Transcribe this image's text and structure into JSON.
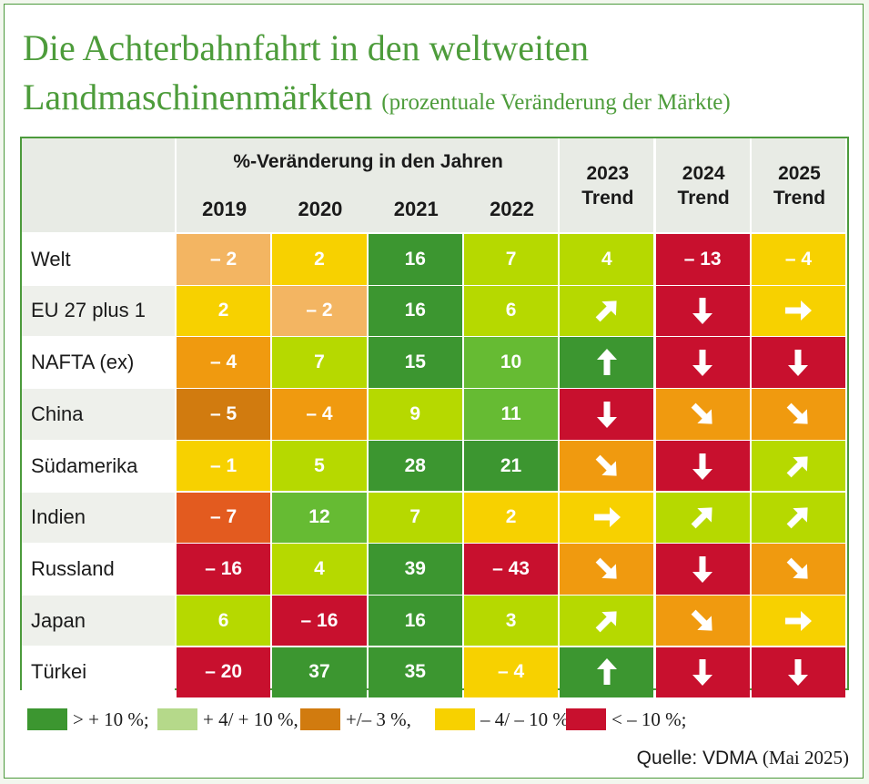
{
  "title": {
    "line1": "Die Achterbahnfahrt in den weltweiten",
    "line2": "Landmaschinenmärkten",
    "subtitle": "(prozentuale Veränderung der Märkte)"
  },
  "colors": {
    "dark_green": "#3c9630",
    "mid_green": "#66bb33",
    "light_green": "#b6d900",
    "light_orange": "#f3b562",
    "orange": "#f09a0f",
    "brown_orange": "#d17b0f",
    "red_orange": "#e35b1f",
    "yellow": "#f7d100",
    "red": "#c8102e",
    "legend_light_green": "#b5d98a"
  },
  "chart_data": {
    "type": "table",
    "header_group": "%-Veränderung in den Jahren",
    "year_columns": [
      "2019",
      "2020",
      "2021",
      "2022"
    ],
    "trend_columns": [
      {
        "year": "2023",
        "label": "Trend"
      },
      {
        "year": "2024",
        "label": "Trend"
      },
      {
        "year": "2025",
        "label": "Trend"
      }
    ],
    "rows": [
      {
        "region": "Welt",
        "values": [
          {
            "text": "– 2",
            "color": "light_orange"
          },
          {
            "text": "2",
            "color": "yellow"
          },
          {
            "text": "16",
            "color": "dark_green"
          },
          {
            "text": "7",
            "color": "light_green"
          }
        ],
        "trends": [
          {
            "text": "4",
            "color": "light_green"
          },
          {
            "text": "– 13",
            "color": "red"
          },
          {
            "text": "– 4",
            "color": "yellow"
          }
        ]
      },
      {
        "region": "EU 27 plus 1",
        "values": [
          {
            "text": "2",
            "color": "yellow"
          },
          {
            "text": "– 2",
            "color": "light_orange"
          },
          {
            "text": "16",
            "color": "dark_green"
          },
          {
            "text": "6",
            "color": "light_green"
          }
        ],
        "trends": [
          {
            "arrow": "up-right",
            "color": "light_green"
          },
          {
            "arrow": "down",
            "color": "red"
          },
          {
            "arrow": "right",
            "color": "yellow"
          }
        ]
      },
      {
        "region": "NAFTA (ex)",
        "values": [
          {
            "text": "– 4",
            "color": "orange"
          },
          {
            "text": "7",
            "color": "light_green"
          },
          {
            "text": "15",
            "color": "dark_green"
          },
          {
            "text": "10",
            "color": "mid_green"
          }
        ],
        "trends": [
          {
            "arrow": "up",
            "color": "dark_green"
          },
          {
            "arrow": "down",
            "color": "red"
          },
          {
            "arrow": "down",
            "color": "red"
          }
        ]
      },
      {
        "region": "China",
        "values": [
          {
            "text": "– 5",
            "color": "brown_orange"
          },
          {
            "text": "– 4",
            "color": "orange"
          },
          {
            "text": "9",
            "color": "light_green"
          },
          {
            "text": "11",
            "color": "mid_green"
          }
        ],
        "trends": [
          {
            "arrow": "down",
            "color": "red"
          },
          {
            "arrow": "down-right",
            "color": "orange"
          },
          {
            "arrow": "down-right",
            "color": "orange"
          }
        ]
      },
      {
        "region": "Südamerika",
        "values": [
          {
            "text": "– 1",
            "color": "yellow"
          },
          {
            "text": "5",
            "color": "light_green"
          },
          {
            "text": "28",
            "color": "dark_green"
          },
          {
            "text": "21",
            "color": "dark_green"
          }
        ],
        "trends": [
          {
            "arrow": "down-right",
            "color": "orange"
          },
          {
            "arrow": "down",
            "color": "red"
          },
          {
            "arrow": "up-right",
            "color": "light_green"
          }
        ]
      },
      {
        "region": "Indien",
        "values": [
          {
            "text": "– 7",
            "color": "red_orange"
          },
          {
            "text": "12",
            "color": "mid_green"
          },
          {
            "text": "7",
            "color": "light_green"
          },
          {
            "text": "2",
            "color": "yellow"
          }
        ],
        "trends": [
          {
            "arrow": "right",
            "color": "yellow"
          },
          {
            "arrow": "up-right",
            "color": "light_green"
          },
          {
            "arrow": "up-right",
            "color": "light_green"
          }
        ]
      },
      {
        "region": "Russland",
        "values": [
          {
            "text": "– 16",
            "color": "red"
          },
          {
            "text": "4",
            "color": "light_green"
          },
          {
            "text": "39",
            "color": "dark_green"
          },
          {
            "text": "– 43",
            "color": "red"
          }
        ],
        "trends": [
          {
            "arrow": "down-right",
            "color": "orange"
          },
          {
            "arrow": "down",
            "color": "red"
          },
          {
            "arrow": "down-right",
            "color": "orange"
          }
        ]
      },
      {
        "region": "Japan",
        "values": [
          {
            "text": "6",
            "color": "light_green"
          },
          {
            "text": "– 16",
            "color": "red"
          },
          {
            "text": "16",
            "color": "dark_green"
          },
          {
            "text": "3",
            "color": "light_green"
          }
        ],
        "trends": [
          {
            "arrow": "up-right",
            "color": "light_green"
          },
          {
            "arrow": "down-right",
            "color": "orange"
          },
          {
            "arrow": "right",
            "color": "yellow"
          }
        ]
      },
      {
        "region": "Türkei",
        "values": [
          {
            "text": "– 20",
            "color": "red"
          },
          {
            "text": "37",
            "color": "dark_green"
          },
          {
            "text": "35",
            "color": "dark_green"
          },
          {
            "text": "– 4",
            "color": "yellow"
          }
        ],
        "trends": [
          {
            "arrow": "up",
            "color": "dark_green"
          },
          {
            "arrow": "down",
            "color": "red"
          },
          {
            "arrow": "down",
            "color": "red"
          }
        ]
      }
    ]
  },
  "legend": [
    {
      "label": "> + 10 %;",
      "color": "dark_green"
    },
    {
      "label": "+ 4/ + 10 %,",
      "color": "legend_light_green"
    },
    {
      "label": "+/– 3 %,",
      "color": "brown_orange"
    },
    {
      "label": "– 4/ – 10 %,",
      "color": "yellow"
    },
    {
      "label": "< – 10 %;",
      "color": "red"
    }
  ],
  "source": {
    "prefix": "Quelle: VDMA",
    "date": "(Mai 2025)"
  }
}
